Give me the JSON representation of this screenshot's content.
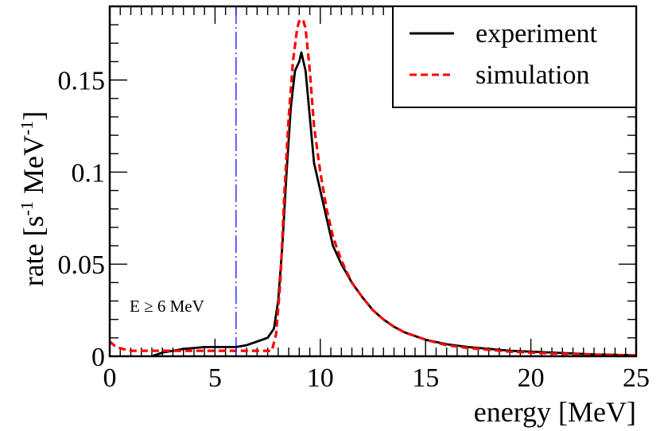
{
  "chart_data": {
    "type": "line",
    "xlabel": "energy [MeV]",
    "ylabel_parts": [
      "rate [s",
      "-1",
      " MeV",
      "-1",
      "]"
    ],
    "xlim": [
      0,
      25
    ],
    "ylim": [
      0,
      0.19
    ],
    "x_ticks": [
      0,
      5,
      10,
      15,
      20,
      25
    ],
    "x_tick_labels": [
      "0",
      "5",
      "10",
      "15",
      "20",
      "25"
    ],
    "y_ticks": [
      0,
      0.05,
      0.1,
      0.15
    ],
    "y_tick_labels": [
      "0",
      "0.05",
      "0.1",
      "0.15"
    ],
    "colors": {
      "experiment": "#000000",
      "simulation": "#ff0000",
      "threshold": "#0000ff"
    },
    "legend": {
      "position": "top-right",
      "entries": [
        "experiment",
        "simulation"
      ]
    },
    "threshold": {
      "x": 6,
      "label": "E ≥ 6 MeV"
    },
    "series": [
      {
        "name": "experiment",
        "style": "solid",
        "x": [
          2.0,
          2.5,
          3.0,
          3.5,
          4.0,
          4.5,
          5.0,
          5.5,
          6.0,
          6.5,
          7.0,
          7.5,
          7.8,
          8.0,
          8.2,
          8.4,
          8.6,
          8.8,
          9.0,
          9.1,
          9.2,
          9.3,
          9.5,
          9.7,
          10.0,
          10.3,
          10.6,
          11.0,
          11.5,
          12.0,
          12.5,
          13.0,
          13.5,
          14.0,
          15.0,
          16.0,
          17.0,
          18.0,
          19.0,
          20.0,
          21.0,
          22.0,
          23.0,
          24.0,
          25.0
        ],
        "values": [
          0.0,
          0.002,
          0.003,
          0.004,
          0.0045,
          0.005,
          0.005,
          0.005,
          0.005,
          0.006,
          0.008,
          0.01,
          0.015,
          0.03,
          0.06,
          0.1,
          0.135,
          0.155,
          0.16,
          0.165,
          0.16,
          0.155,
          0.13,
          0.105,
          0.09,
          0.075,
          0.06,
          0.05,
          0.04,
          0.032,
          0.025,
          0.02,
          0.016,
          0.013,
          0.009,
          0.0065,
          0.005,
          0.004,
          0.003,
          0.0025,
          0.002,
          0.0015,
          0.001,
          0.0008,
          0.0005
        ]
      },
      {
        "name": "simulation",
        "style": "dashed",
        "x": [
          0.0,
          0.3,
          0.6,
          1.0,
          2.0,
          3.0,
          4.0,
          5.0,
          6.0,
          7.0,
          7.7,
          7.9,
          8.1,
          8.3,
          8.5,
          8.7,
          8.9,
          9.0,
          9.1,
          9.2,
          9.3,
          9.5,
          9.7,
          10.0,
          10.3,
          10.6,
          11.0,
          11.5,
          12.0,
          12.5,
          13.0,
          13.5,
          14.0,
          15.0,
          16.0,
          17.0,
          18.0,
          19.0,
          20.0,
          21.0,
          22.0,
          23.0,
          24.0,
          25.0
        ],
        "values": [
          0.008,
          0.005,
          0.004,
          0.003,
          0.003,
          0.003,
          0.003,
          0.003,
          0.003,
          0.003,
          0.003,
          0.012,
          0.04,
          0.09,
          0.13,
          0.16,
          0.178,
          0.182,
          0.183,
          0.182,
          0.178,
          0.155,
          0.125,
          0.1,
          0.08,
          0.065,
          0.052,
          0.04,
          0.032,
          0.025,
          0.02,
          0.016,
          0.013,
          0.009,
          0.006,
          0.0045,
          0.0035,
          0.0025,
          0.002,
          0.0015,
          0.0012,
          0.0009,
          0.0006,
          0.0004
        ]
      }
    ]
  }
}
